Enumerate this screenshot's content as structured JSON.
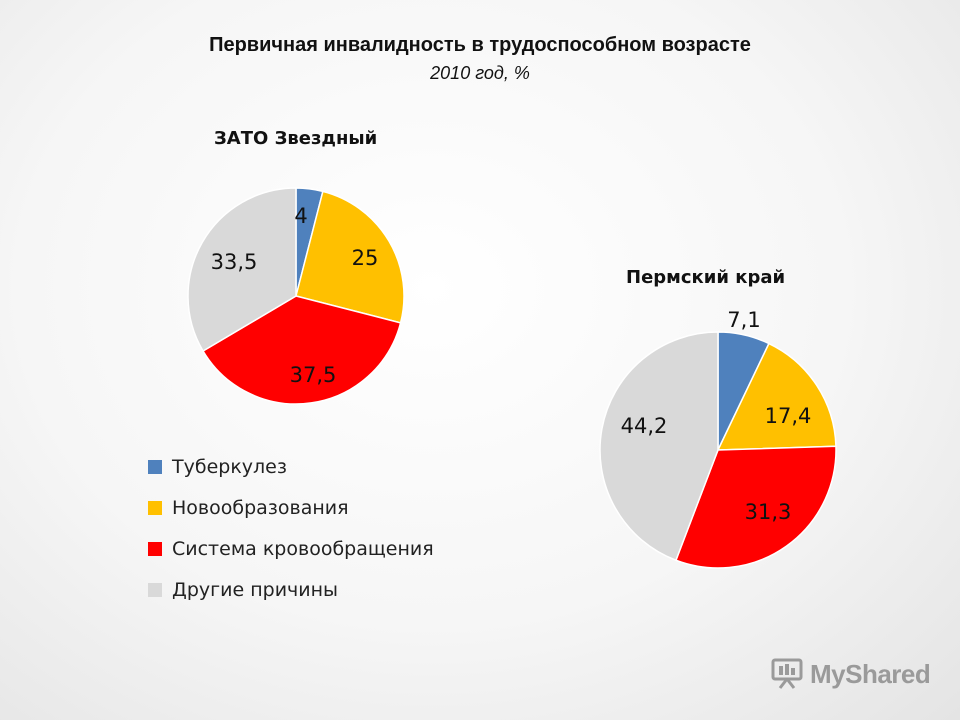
{
  "title": "Первичная инвалидность в трудоспособном возрасте",
  "subtitle": "2010 год, %",
  "watermark": "MyShared",
  "legend": [
    {
      "label": "Туберкулез",
      "color": "#4f81bd"
    },
    {
      "label": "Новообразования",
      "color": "#ffc000"
    },
    {
      "label": "Система кровообращения",
      "color": "#ff0000"
    },
    {
      "label": "Другие причины",
      "color": "#d9d9d9"
    }
  ],
  "chart_data": [
    {
      "type": "pie",
      "title": "ЗАТО Звездный",
      "categories": [
        "Туберкулез",
        "Новообразования",
        "Система кровообращения",
        "Другие причины"
      ],
      "values": [
        4,
        25,
        37.5,
        33.5
      ],
      "labels": [
        "4",
        "25",
        "37,5",
        "33,5"
      ],
      "colors": [
        "#4f81bd",
        "#ffc000",
        "#ff0000",
        "#d9d9d9"
      ]
    },
    {
      "type": "pie",
      "title": "Пермский край",
      "categories": [
        "Туберкулез",
        "Новообразования",
        "Система кровообращения",
        "Другие причины"
      ],
      "values": [
        7.1,
        17.4,
        31.3,
        44.2
      ],
      "labels": [
        "7,1",
        "17,4",
        "31,3",
        "44,2"
      ],
      "colors": [
        "#4f81bd",
        "#ffc000",
        "#ff0000",
        "#d9d9d9"
      ]
    }
  ]
}
